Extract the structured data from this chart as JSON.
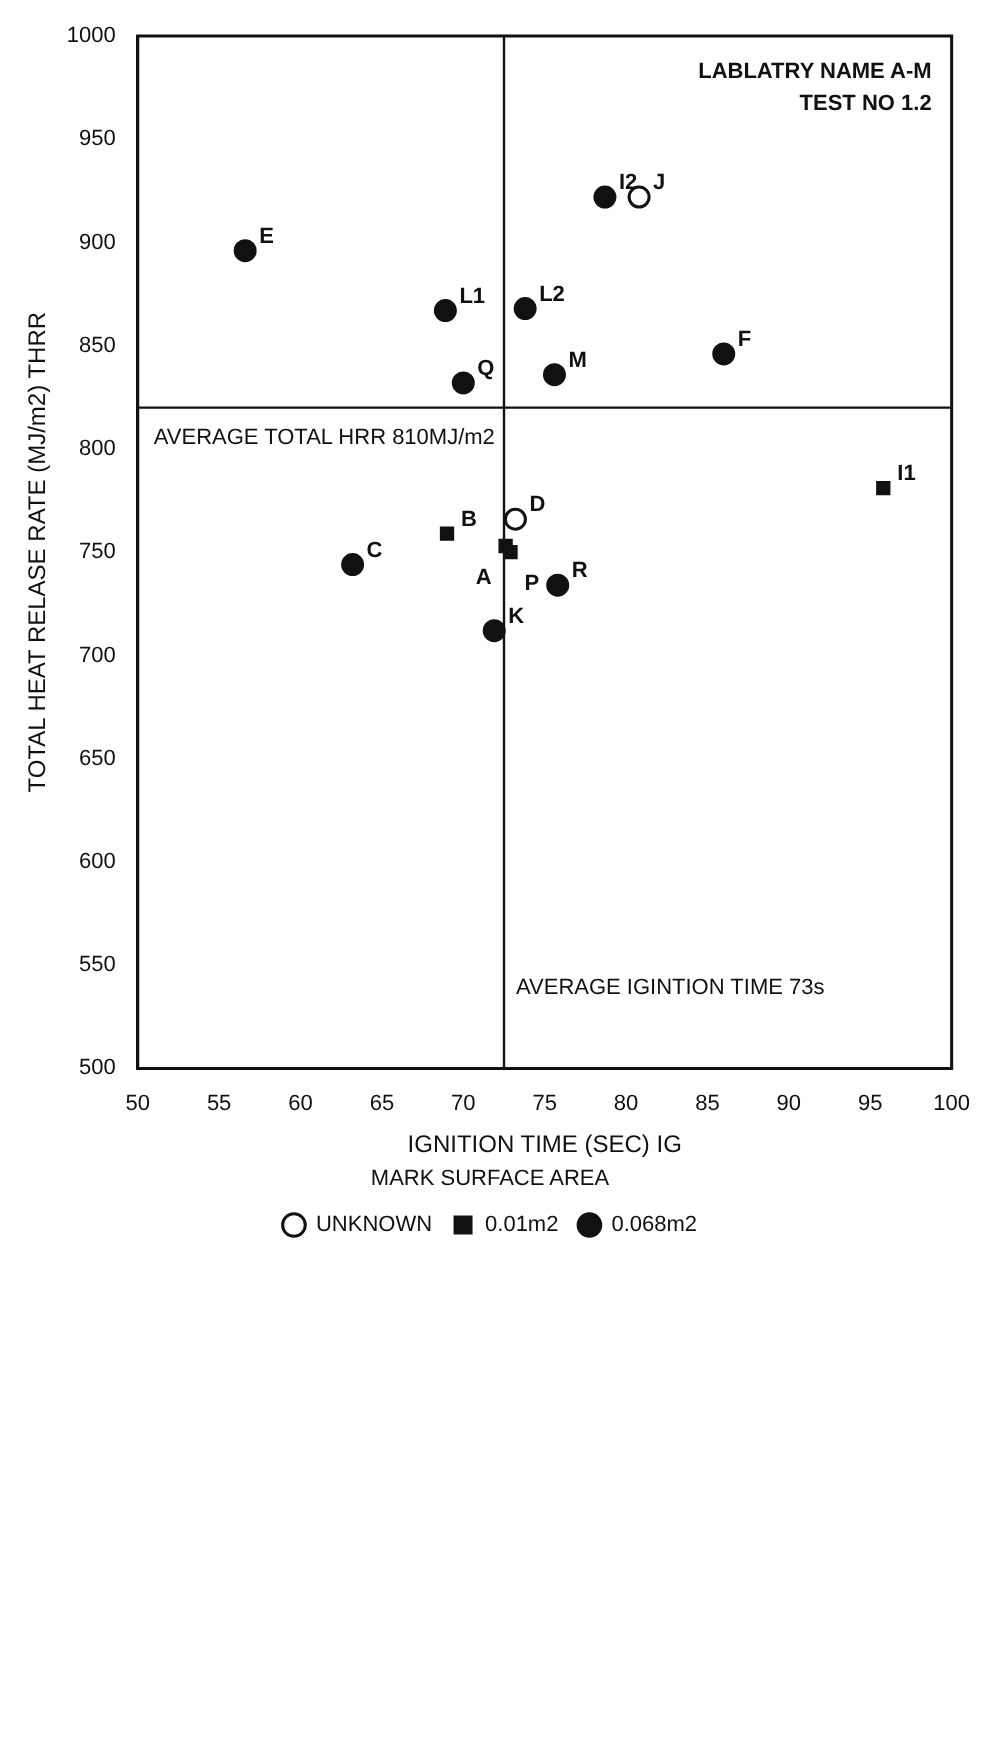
{
  "chart_data": {
    "type": "scatter",
    "xlabel": "IGNITION TIME (SEC) IG",
    "ylabel": "TOTAL HEAT RELASE RATE (MJ/m2) THRR",
    "legend_title": "MARK SURFACE AREA",
    "xlim": [
      50,
      100
    ],
    "xticks": [
      50,
      55,
      60,
      65,
      70,
      75,
      80,
      85,
      90,
      95,
      100
    ],
    "ylim": [
      500,
      1000
    ],
    "yticks": [
      500,
      550,
      600,
      650,
      700,
      750,
      800,
      850,
      900,
      950,
      1000
    ],
    "grid": false,
    "legend": "bottom",
    "series": [
      {
        "name": "UNKNOWN",
        "color": "#ffffff",
        "marker": "circle",
        "x": [
          73.2,
          80.8
        ],
        "values": [
          766,
          922
        ]
      },
      {
        "name": "0.01m2",
        "color": "#111111",
        "marker": "square",
        "x": [
          69.0,
          72.6,
          72.9,
          95.8
        ],
        "values": [
          759,
          753,
          750,
          781
        ]
      },
      {
        "name": "0.068m2",
        "color": "#111111",
        "marker": "circle",
        "x": [
          56.6,
          63.2,
          68.9,
          70.0,
          71.9,
          73.8,
          75.6,
          75.8,
          78.7,
          86.0
        ],
        "values": [
          896,
          744,
          867,
          832,
          712,
          868,
          836,
          734,
          922,
          846
        ]
      }
    ],
    "ref_lines": [
      {
        "axis": "x",
        "value": 72.5,
        "label": "AVERAGE IGINTION TIME 73s"
      },
      {
        "axis": "y",
        "value": 820,
        "label": "AVERAGE TOTAL HRR 810MJ/m2"
      }
    ],
    "annotations": [
      "LABLATRY NAME A-M",
      "TEST NO 1.2",
      {
        "text": "D",
        "x": 73.2,
        "y": 766
      },
      {
        "text": "J",
        "x": 80.8,
        "y": 922
      },
      {
        "text": "B",
        "x": 69.0,
        "y": 759
      },
      {
        "text": "A",
        "x": 72.6,
        "y": 753
      },
      {
        "text": "P",
        "x": 72.9,
        "y": 750
      },
      {
        "text": "I1",
        "x": 95.8,
        "y": 781
      },
      {
        "text": "E",
        "x": 56.6,
        "y": 896
      },
      {
        "text": "C",
        "x": 63.2,
        "y": 744
      },
      {
        "text": "L1",
        "x": 68.9,
        "y": 867
      },
      {
        "text": "Q",
        "x": 70.0,
        "y": 832
      },
      {
        "text": "K",
        "x": 71.9,
        "y": 712
      },
      {
        "text": "L2",
        "x": 73.8,
        "y": 868
      },
      {
        "text": "M",
        "x": 75.6,
        "y": 836
      },
      {
        "text": "R",
        "x": 75.8,
        "y": 734
      },
      {
        "text": "I2",
        "x": 78.7,
        "y": 922
      },
      {
        "text": "F",
        "x": 86.0,
        "y": 846
      }
    ]
  }
}
